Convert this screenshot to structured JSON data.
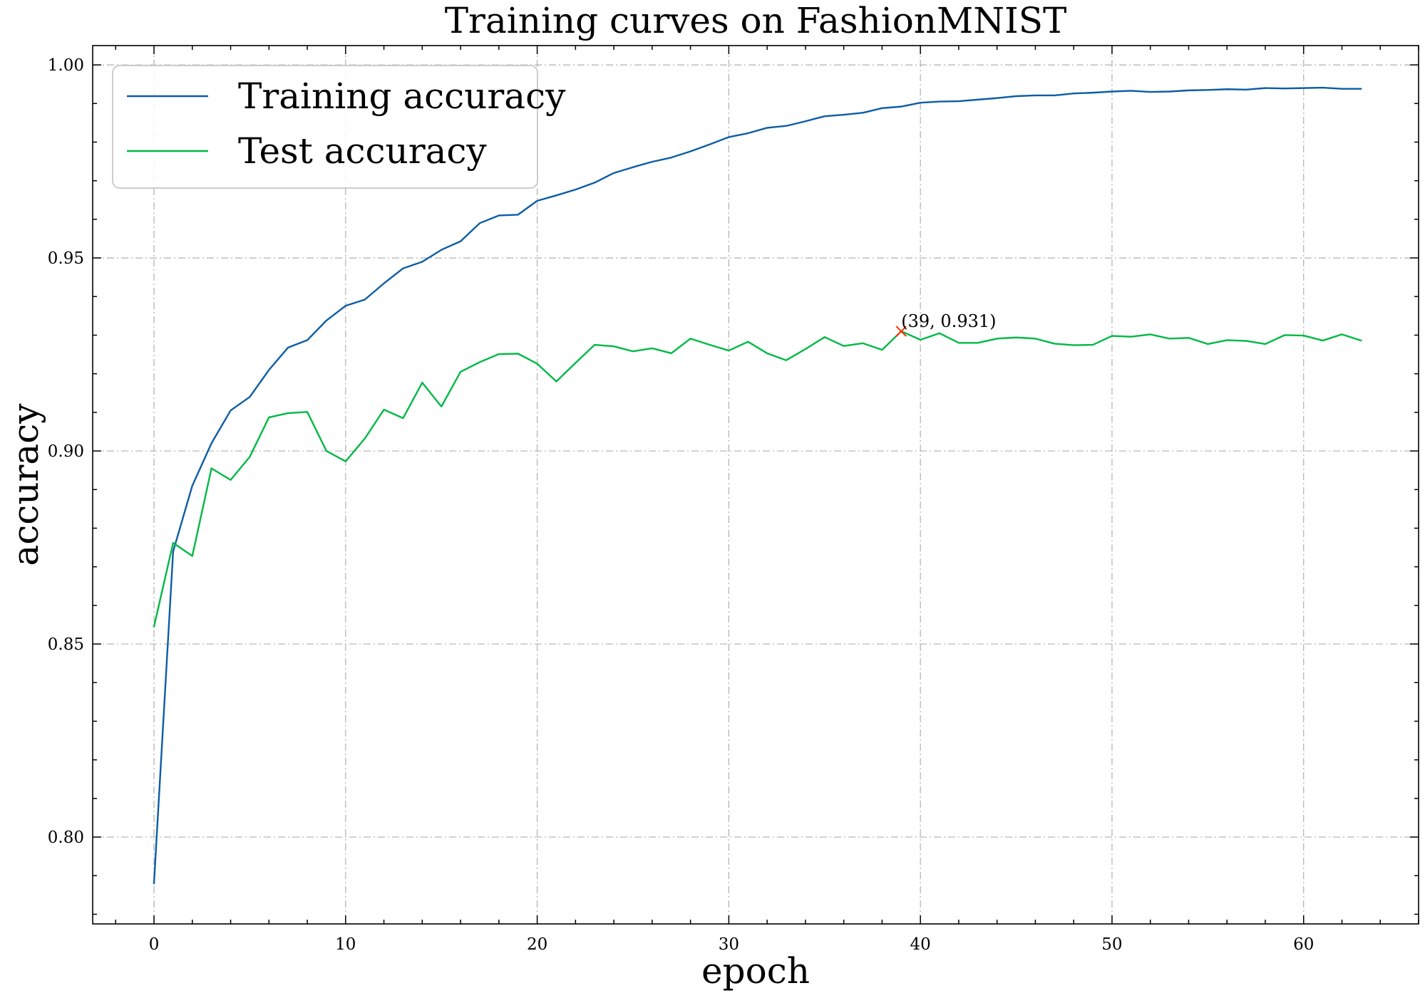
{
  "colors": {
    "train": "#0C5DA5",
    "test": "#00B945",
    "marker": "#FF2C00"
  },
  "chart_data": {
    "type": "line",
    "title": "Training curves on FashionMNIST",
    "xlabel": "epoch",
    "ylabel": "accuracy",
    "xlim": [
      -3.2,
      66
    ],
    "ylim": [
      0.7775,
      1.005
    ],
    "xticks": [
      0,
      10,
      20,
      30,
      40,
      50,
      60
    ],
    "xtick_labels": [
      "0",
      "10",
      "20",
      "30",
      "40",
      "50",
      "60"
    ],
    "yticks": [
      0.8,
      0.85,
      0.9,
      0.95,
      1.0
    ],
    "ytick_labels": [
      "0.80",
      "0.85",
      "0.90",
      "0.95",
      "1.00"
    ],
    "grid": true,
    "legend_position": "top-left",
    "x": [
      0,
      1,
      2,
      3,
      4,
      5,
      6,
      7,
      8,
      9,
      10,
      11,
      12,
      13,
      14,
      15,
      16,
      17,
      18,
      19,
      20,
      21,
      22,
      23,
      24,
      25,
      26,
      27,
      28,
      29,
      30,
      31,
      32,
      33,
      34,
      35,
      36,
      37,
      38,
      39,
      40,
      41,
      42,
      43,
      44,
      45,
      46,
      47,
      48,
      49,
      50,
      51,
      52,
      53,
      54,
      55,
      56,
      57,
      58,
      59,
      60,
      61,
      62,
      63
    ],
    "series": [
      {
        "name": "Training accuracy",
        "values": [
          0.788,
          0.874,
          0.891,
          0.902,
          0.9105,
          0.914,
          0.921,
          0.9268,
          0.9287,
          0.9338,
          0.9376,
          0.9392,
          0.9434,
          0.9473,
          0.949,
          0.9521,
          0.9543,
          0.959,
          0.961,
          0.9612,
          0.9648,
          0.9662,
          0.9677,
          0.9695,
          0.972,
          0.9735,
          0.9749,
          0.976,
          0.9776,
          0.9794,
          0.9813,
          0.9823,
          0.9837,
          0.9842,
          0.9854,
          0.9867,
          0.9871,
          0.9876,
          0.9888,
          0.9892,
          0.9902,
          0.9905,
          0.9906,
          0.991,
          0.9914,
          0.9919,
          0.9921,
          0.9921,
          0.9926,
          0.9928,
          0.9931,
          0.9933,
          0.993,
          0.9931,
          0.9934,
          0.9935,
          0.9937,
          0.9936,
          0.994,
          0.9939,
          0.994,
          0.9941,
          0.9938,
          0.9938
        ]
      },
      {
        "name": "Test accuracy",
        "values": [
          0.8545,
          0.8762,
          0.8728,
          0.8955,
          0.8925,
          0.8985,
          0.9087,
          0.9098,
          0.9101,
          0.9,
          0.8973,
          0.9032,
          0.9107,
          0.9085,
          0.9177,
          0.9115,
          0.9205,
          0.923,
          0.9251,
          0.9252,
          0.9226,
          0.918,
          0.9228,
          0.9275,
          0.9271,
          0.9258,
          0.9266,
          0.9253,
          0.9291,
          0.9275,
          0.926,
          0.9283,
          0.9253,
          0.9235,
          0.9264,
          0.9295,
          0.9272,
          0.9279,
          0.9262,
          0.931,
          0.9288,
          0.9305,
          0.928,
          0.928,
          0.9291,
          0.9294,
          0.9291,
          0.9278,
          0.9274,
          0.9275,
          0.9298,
          0.9296,
          0.9302,
          0.9291,
          0.9293,
          0.9277,
          0.9287,
          0.9285,
          0.9277,
          0.93,
          0.9299,
          0.9286,
          0.9302,
          0.9286
        ]
      }
    ],
    "annotations": [
      {
        "x": 39,
        "y": 0.931,
        "text": "(39, 0.931)",
        "marker": "x"
      }
    ]
  }
}
